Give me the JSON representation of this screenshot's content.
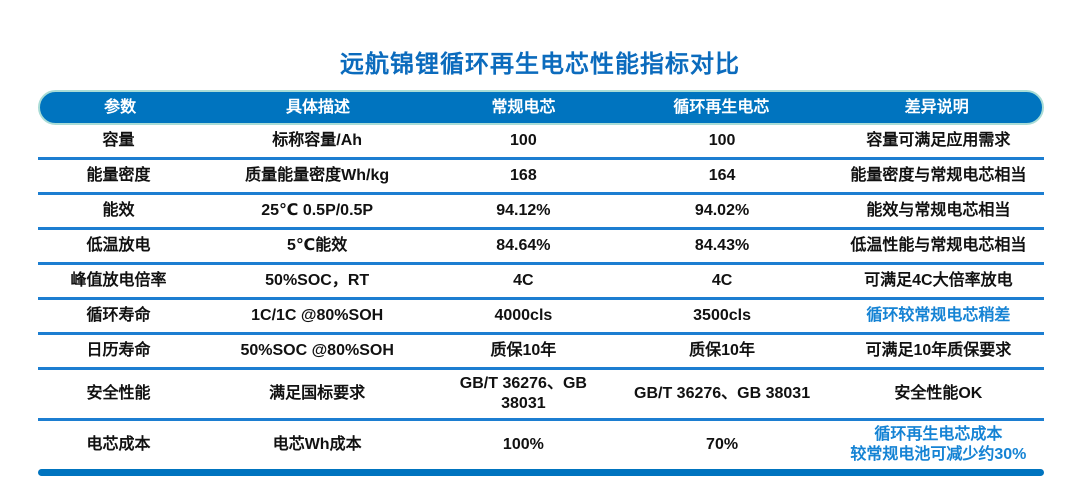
{
  "title": "远航锦锂循环再生电芯性能指标对比",
  "colors": {
    "accent_blue": "#0074bf",
    "divider_blue": "#1c7ed1",
    "title_blue": "#0b6bbd",
    "highlight_text_blue": "#1583d4",
    "header_outline_teal": "#a9dcd6"
  },
  "table": {
    "headers": [
      "参数",
      "具体描述",
      "常规电芯",
      "循环再生电芯",
      "差异说明"
    ],
    "rows": [
      {
        "param": "容量",
        "desc": "标称容量/Ah",
        "regular": "100",
        "recycled": "100",
        "diff": "容量可满足应用需求",
        "diff_highlight": false
      },
      {
        "param": "能量密度",
        "desc": "质量能量密度Wh/kg",
        "regular": "168",
        "recycled": "164",
        "diff": "能量密度与常规电芯相当",
        "diff_highlight": false
      },
      {
        "param": "能效",
        "desc": "25℃ 0.5P/0.5P",
        "regular": "94.12%",
        "recycled": "94.02%",
        "diff": "能效与常规电芯相当",
        "diff_highlight": false
      },
      {
        "param": "低温放电",
        "desc": "5℃能效",
        "regular": "84.64%",
        "recycled": "84.43%",
        "diff": "低温性能与常规电芯相当",
        "diff_highlight": false
      },
      {
        "param": "峰值放电倍率",
        "desc": "50%SOC，RT",
        "regular": "4C",
        "recycled": "4C",
        "diff": "可满足4C大倍率放电",
        "diff_highlight": false
      },
      {
        "param": "循环寿命",
        "desc": "1C/1C @80%SOH",
        "regular": "4000cls",
        "recycled": "3500cls",
        "diff": "循环较常规电芯稍差",
        "diff_highlight": true
      },
      {
        "param": "日历寿命",
        "desc": "50%SOC @80%SOH",
        "regular": "质保10年",
        "recycled": "质保10年",
        "diff": "可满足10年质保要求",
        "diff_highlight": false
      },
      {
        "param": "安全性能",
        "desc": "满足国标要求",
        "regular": "GB/T 36276、GB 38031",
        "recycled": "GB/T 36276、GB 38031",
        "diff": "安全性能OK",
        "diff_highlight": false
      },
      {
        "param": "电芯成本",
        "desc": "电芯Wh成本",
        "regular": "100%",
        "recycled": "70%",
        "diff": "循环再生电芯成本\n较常规电池可减少约30%",
        "diff_highlight": true
      }
    ]
  }
}
